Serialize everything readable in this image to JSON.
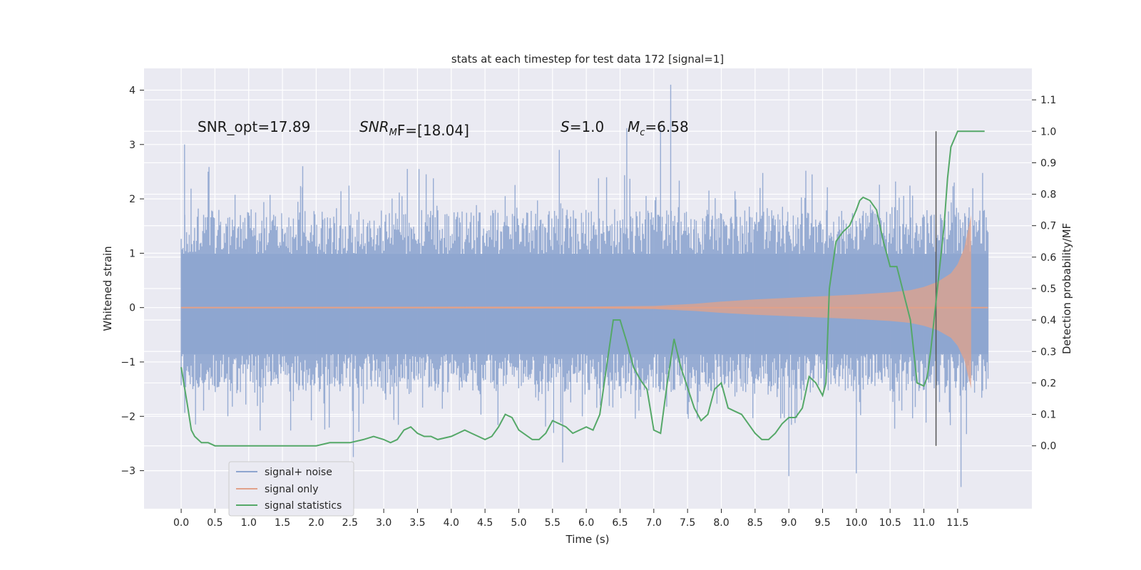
{
  "chart_data": {
    "type": "line",
    "title": "stats at each timestep for test data 172 [signal=1]",
    "xlabel": "Time (s)",
    "ylabel": "Whitened strain",
    "ylabel_right": "Detection probability/MF",
    "xlim": [
      -0.55,
      12.6
    ],
    "ylim": [
      -3.7,
      4.4
    ],
    "ylim_right": [
      -0.2,
      1.2
    ],
    "x_ticks": [
      "0.0",
      "0.5",
      "1.0",
      "1.5",
      "2.0",
      "2.5",
      "3.0",
      "3.5",
      "4.0",
      "4.5",
      "5.0",
      "5.5",
      "6.0",
      "6.5",
      "7.0",
      "7.5",
      "8.0",
      "8.5",
      "9.0",
      "9.5",
      "10.0",
      "10.5",
      "11.0",
      "11.5"
    ],
    "y_ticks": [
      "4",
      "3",
      "2",
      "1",
      "0",
      "−1",
      "−2",
      "−3"
    ],
    "y_ticks_right": [
      "1.1",
      "1.0",
      "0.9",
      "0.8",
      "0.7",
      "0.6",
      "0.5",
      "0.4",
      "0.3",
      "0.2",
      "0.1",
      "0.0"
    ],
    "grid": true,
    "legend_placement": "lower-left",
    "annotations": {
      "snr_opt": "SNR_opt=17.89",
      "snr_mf_main": "SNR",
      "snr_mf_sub": "M",
      "snr_mf_tail": "F=[18.04]",
      "s_var": "S",
      "s_val": "=1.0",
      "mc_var": "M",
      "mc_sub": "c",
      "mc_val": "=6.58"
    },
    "vertical_line_x": 11.18,
    "series": [
      {
        "name": "signal+ noise",
        "color": "#8ea5cf",
        "x_range": [
          0.0,
          11.95
        ],
        "band_typical": [
          -1.3,
          1.5
        ],
        "peaks": [
          {
            "x": 0.05,
            "y": 3.0
          },
          {
            "x": 0.4,
            "y": 2.5
          },
          {
            "x": 1.8,
            "y": 2.6
          },
          {
            "x": 3.35,
            "y": 2.55
          },
          {
            "x": 5.6,
            "y": 2.9
          },
          {
            "x": 6.6,
            "y": 3.3
          },
          {
            "x": 7.1,
            "y": 3.3
          },
          {
            "x": 7.25,
            "y": 4.1
          },
          {
            "x": 11.45,
            "y": 2.3
          }
        ],
        "troughs": [
          {
            "x": 2.55,
            "y": -2.75
          },
          {
            "x": 5.65,
            "y": -2.85
          },
          {
            "x": 9.0,
            "y": -3.1
          },
          {
            "x": 10.0,
            "y": -3.05
          },
          {
            "x": 11.55,
            "y": -3.3
          }
        ]
      },
      {
        "name": "signal only",
        "color": "#e1a18a",
        "envelope_x": [
          0.0,
          6.0,
          7.0,
          7.6,
          8.0,
          8.5,
          9.0,
          9.5,
          10.0,
          10.5,
          10.8,
          11.0,
          11.2,
          11.4,
          11.5,
          11.6,
          11.65,
          11.7
        ],
        "envelope_y": [
          0.01,
          0.02,
          0.03,
          0.07,
          0.11,
          0.15,
          0.18,
          0.21,
          0.24,
          0.28,
          0.32,
          0.38,
          0.47,
          0.63,
          0.8,
          1.1,
          1.4,
          1.7
        ]
      },
      {
        "name": "signal statistics",
        "color": "#55a868",
        "axis": "right",
        "x": [
          0.0,
          0.1,
          0.15,
          0.2,
          0.3,
          0.4,
          0.5,
          0.6,
          0.8,
          1.0,
          1.3,
          1.5,
          1.8,
          2.0,
          2.2,
          2.5,
          2.7,
          2.85,
          3.0,
          3.1,
          3.2,
          3.3,
          3.4,
          3.5,
          3.6,
          3.7,
          3.8,
          4.0,
          4.1,
          4.2,
          4.3,
          4.4,
          4.5,
          4.6,
          4.7,
          4.8,
          4.9,
          5.0,
          5.2,
          5.3,
          5.4,
          5.5,
          5.6,
          5.7,
          5.8,
          6.0,
          6.1,
          6.2,
          6.3,
          6.4,
          6.5,
          6.6,
          6.7,
          6.8,
          6.9,
          7.0,
          7.1,
          7.2,
          7.3,
          7.4,
          7.6,
          7.7,
          7.8,
          7.9,
          8.0,
          8.1,
          8.2,
          8.3,
          8.5,
          8.6,
          8.7,
          8.8,
          8.9,
          9.0,
          9.1,
          9.2,
          9.3,
          9.4,
          9.5,
          9.55,
          9.6,
          9.7,
          9.8,
          9.9,
          10.0,
          10.05,
          10.1,
          10.2,
          10.3,
          10.4,
          10.5,
          10.6,
          10.8,
          10.9,
          11.0,
          11.05,
          11.1,
          11.2,
          11.3,
          11.35,
          11.4,
          11.5,
          11.6,
          11.8,
          11.9
        ],
        "y": [
          0.25,
          0.12,
          0.05,
          0.03,
          0.01,
          0.01,
          0.0,
          0.0,
          0.0,
          0.0,
          0.0,
          0.0,
          0.0,
          0.0,
          0.01,
          0.01,
          0.02,
          0.03,
          0.02,
          0.01,
          0.02,
          0.05,
          0.06,
          0.04,
          0.03,
          0.03,
          0.02,
          0.03,
          0.04,
          0.05,
          0.04,
          0.03,
          0.02,
          0.03,
          0.06,
          0.1,
          0.09,
          0.05,
          0.02,
          0.02,
          0.04,
          0.08,
          0.07,
          0.06,
          0.04,
          0.06,
          0.05,
          0.1,
          0.25,
          0.4,
          0.4,
          0.33,
          0.25,
          0.21,
          0.18,
          0.05,
          0.04,
          0.2,
          0.34,
          0.25,
          0.12,
          0.08,
          0.1,
          0.18,
          0.2,
          0.12,
          0.11,
          0.1,
          0.04,
          0.02,
          0.02,
          0.04,
          0.07,
          0.09,
          0.09,
          0.12,
          0.22,
          0.2,
          0.16,
          0.2,
          0.5,
          0.65,
          0.68,
          0.7,
          0.75,
          0.78,
          0.79,
          0.78,
          0.75,
          0.65,
          0.57,
          0.57,
          0.4,
          0.2,
          0.19,
          0.22,
          0.3,
          0.5,
          0.7,
          0.85,
          0.95,
          1.0,
          1.0,
          1.0,
          1.0
        ]
      }
    ]
  }
}
